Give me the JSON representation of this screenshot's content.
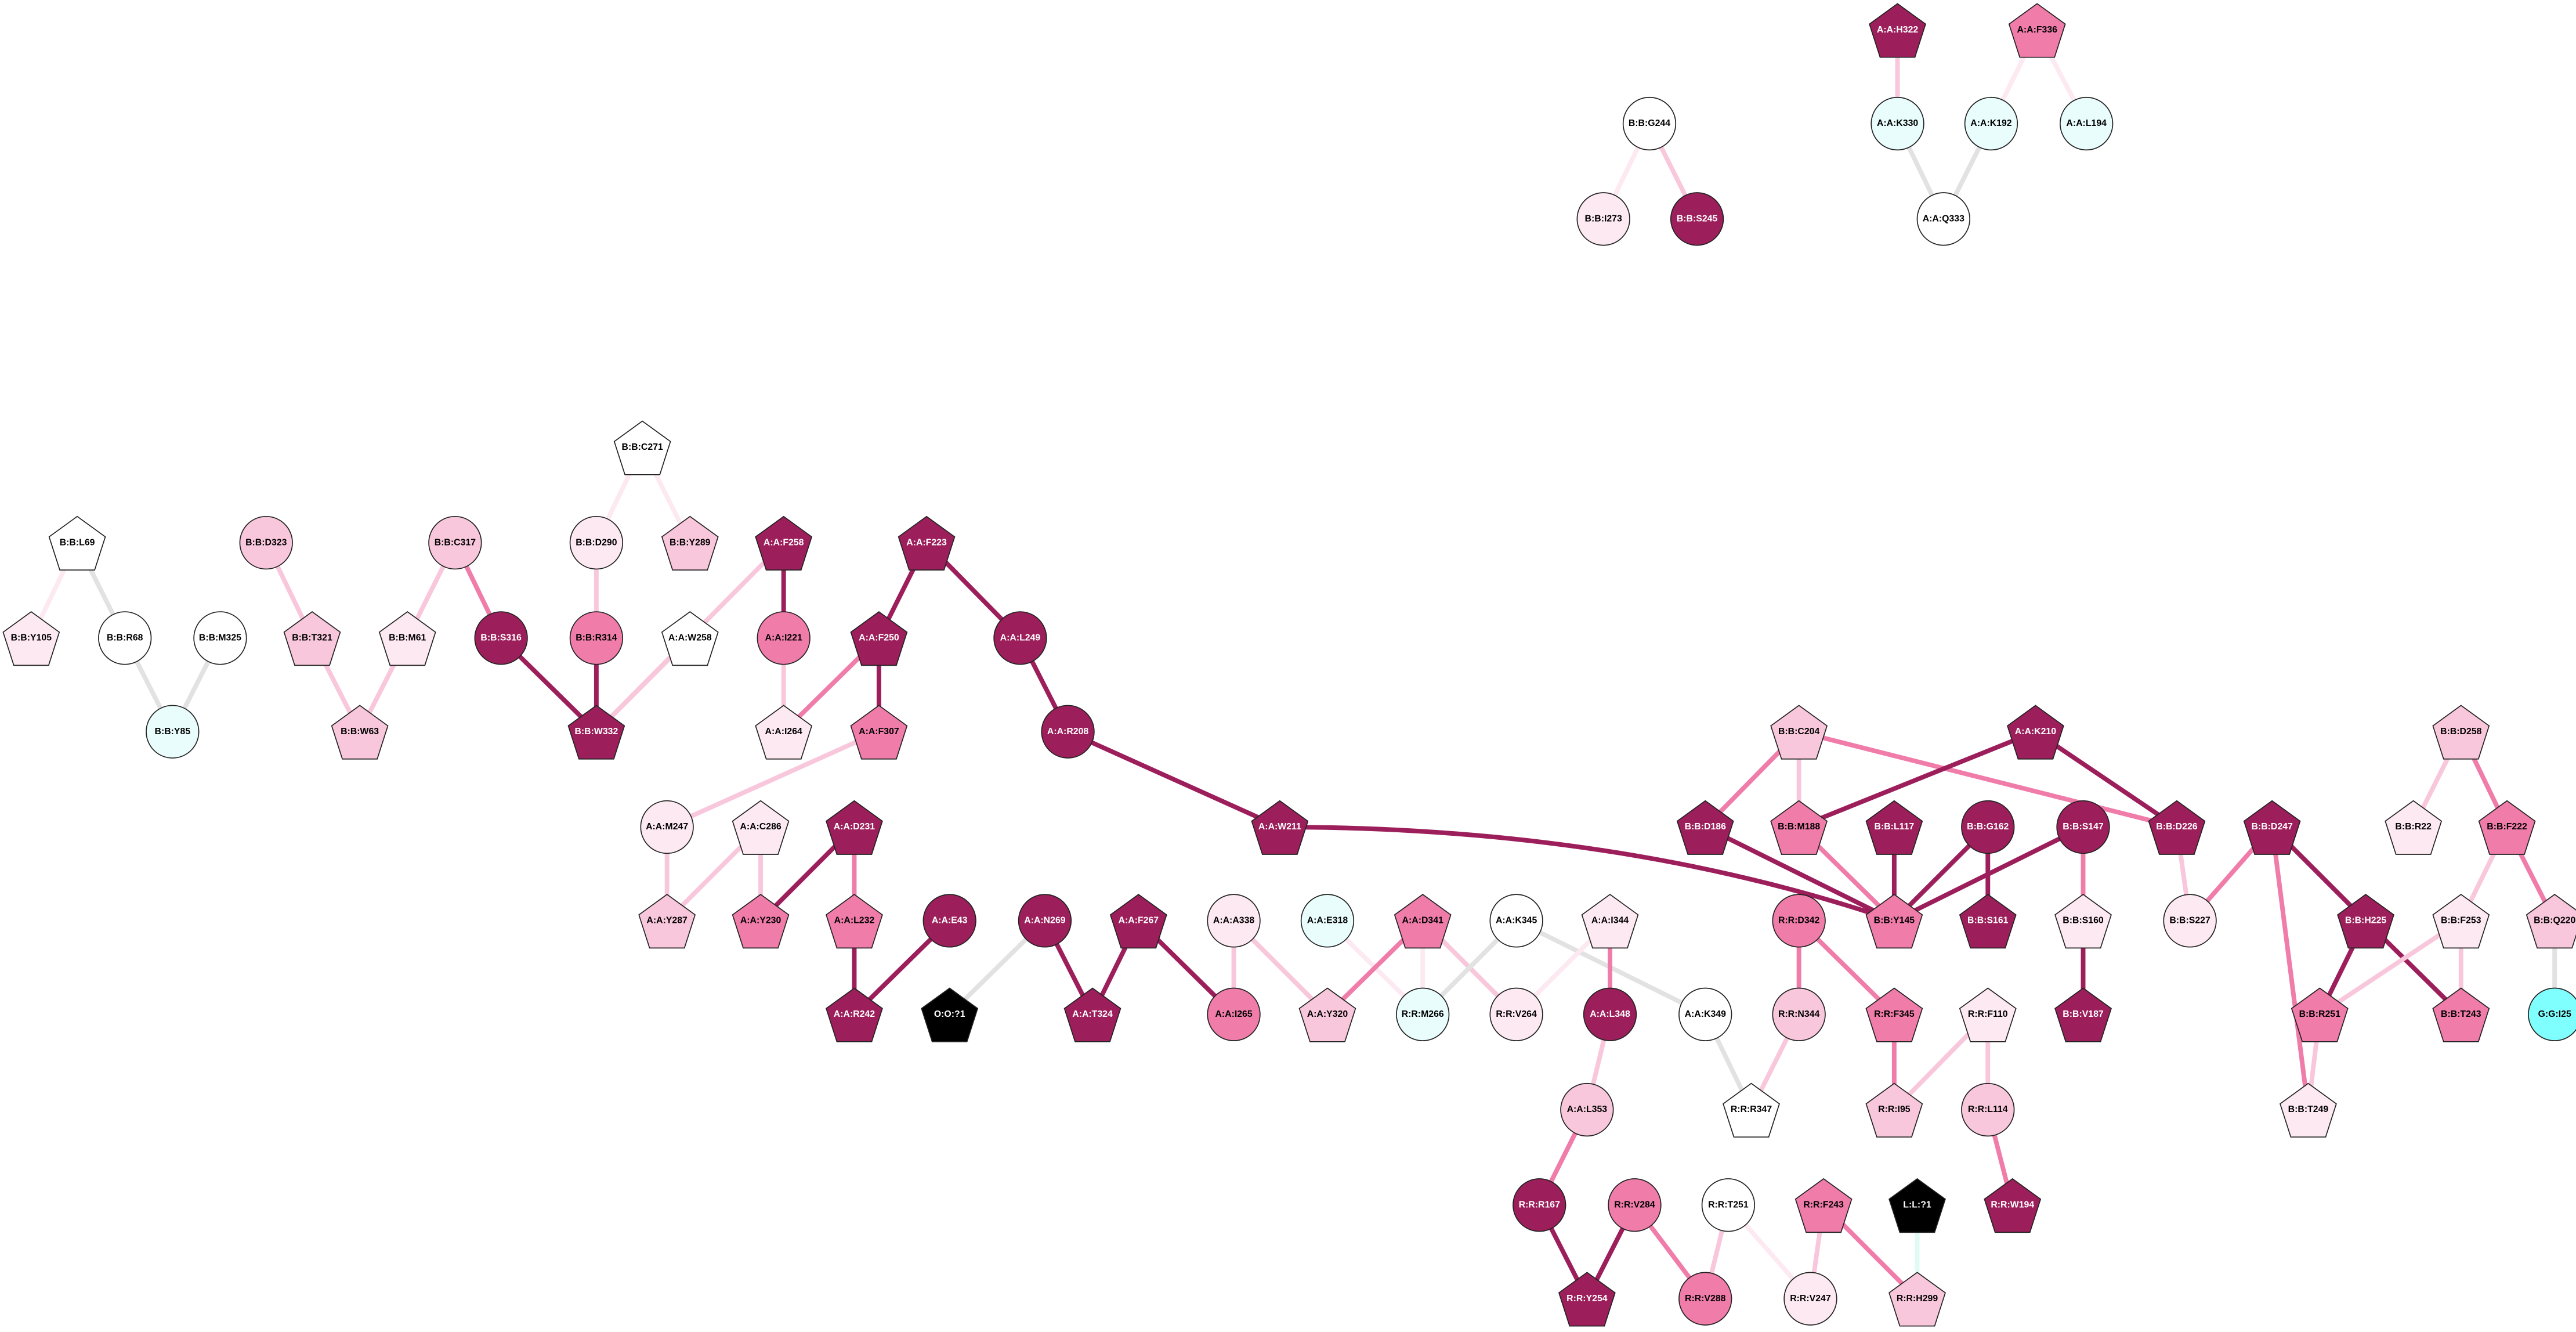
{
  "nodes": [
    {
      "label": "A:A:H322"
    },
    {
      "label": "A:A:F336"
    },
    {
      "label": "B:B:G244"
    },
    {
      "label": "A:A:K330"
    },
    {
      "label": "A:A:K192"
    },
    {
      "label": "A:A:L194"
    },
    {
      "label": "B:B:I273"
    },
    {
      "label": "B:B:S245"
    },
    {
      "label": "A:A:Q333"
    },
    {
      "label": "B:B:L69"
    },
    {
      "label": "B:B:Y105"
    },
    {
      "label": "B:B:R68"
    },
    {
      "label": "B:B:Y85"
    },
    {
      "label": "B:B:M325"
    },
    {
      "label": "B:B:D323"
    },
    {
      "label": "B:B:T321"
    },
    {
      "label": "B:B:W63"
    },
    {
      "label": "B:B:M61"
    },
    {
      "label": "B:B:C317"
    },
    {
      "label": "B:B:S316"
    },
    {
      "label": "B:B:W332"
    },
    {
      "label": "B:B:R314"
    },
    {
      "label": "B:B:D290"
    },
    {
      "label": "B:B:C271"
    },
    {
      "label": "B:B:Y289"
    },
    {
      "label": "A:A:W258"
    },
    {
      "label": "A:A:F258"
    },
    {
      "label": "A:A:I221"
    },
    {
      "label": "A:A:I264"
    },
    {
      "label": "A:A:F223"
    },
    {
      "label": "A:A:F250"
    },
    {
      "label": "A:A:L249"
    },
    {
      "label": "A:A:F307"
    },
    {
      "label": "A:A:R208"
    },
    {
      "label": "A:A:M247"
    },
    {
      "label": "A:A:C286"
    },
    {
      "label": "A:A:D231"
    },
    {
      "label": "A:A:Y287"
    },
    {
      "label": "A:A:Y230"
    },
    {
      "label": "A:A:L232"
    },
    {
      "label": "A:A:R242"
    },
    {
      "label": "A:A:E43"
    },
    {
      "label": "O:O:?1"
    },
    {
      "label": "A:A:N269"
    },
    {
      "label": "A:A:T324"
    },
    {
      "label": "A:A:F267"
    },
    {
      "label": "A:A:I265"
    },
    {
      "label": "A:A:A338"
    },
    {
      "label": "A:A:Y320"
    },
    {
      "label": "A:A:E318"
    },
    {
      "label": "A:A:D341"
    },
    {
      "label": "R:R:M266"
    },
    {
      "label": "R:R:V264"
    },
    {
      "label": "A:A:K345"
    },
    {
      "label": "A:A:I344"
    },
    {
      "label": "A:A:L348"
    },
    {
      "label": "A:A:K349"
    },
    {
      "label": "A:A:L353"
    },
    {
      "label": "R:R:R167"
    },
    {
      "label": "R:R:Y254"
    },
    {
      "label": "R:R:V284"
    },
    {
      "label": "R:R:V288"
    },
    {
      "label": "R:R:T251"
    },
    {
      "label": "R:R:V247"
    },
    {
      "label": "R:R:F243"
    },
    {
      "label": "R:R:H299"
    },
    {
      "label": "L:L:?1"
    },
    {
      "label": "A:A:W211"
    },
    {
      "label": "R:R:D342"
    },
    {
      "label": "R:R:N344"
    },
    {
      "label": "R:R:R347"
    },
    {
      "label": "R:R:F345"
    },
    {
      "label": "R:R:I95"
    },
    {
      "label": "R:R:F110"
    },
    {
      "label": "R:R:L114"
    },
    {
      "label": "R:R:W194"
    },
    {
      "label": "B:B:C204"
    },
    {
      "label": "B:B:D186"
    },
    {
      "label": "B:B:M188"
    },
    {
      "label": "B:B:L117"
    },
    {
      "label": "B:B:G162"
    },
    {
      "label": "B:B:S147"
    },
    {
      "label": "B:B:Y145"
    },
    {
      "label": "B:B:S161"
    },
    {
      "label": "A:A:K210"
    },
    {
      "label": "B:B:D226"
    },
    {
      "label": "B:B:S160"
    },
    {
      "label": "B:B:V187"
    },
    {
      "label": "B:B:S227"
    },
    {
      "label": "B:B:D247"
    },
    {
      "label": "B:B:H225"
    },
    {
      "label": "B:B:R251"
    },
    {
      "label": "B:B:T243"
    },
    {
      "label": "B:B:T249"
    },
    {
      "label": "B:B:D258"
    },
    {
      "label": "B:B:R22"
    },
    {
      "label": "B:B:F222"
    },
    {
      "label": "B:B:F253"
    },
    {
      "label": "B:B:Q220"
    },
    {
      "label": "G:G:I25"
    }
  ]
}
